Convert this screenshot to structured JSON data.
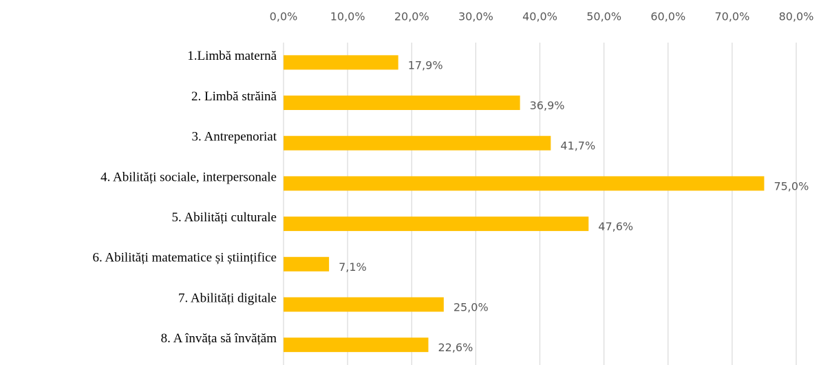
{
  "chart_data": {
    "type": "bar",
    "orientation": "horizontal",
    "categories": [
      "1.Limbă maternă",
      "2. Limbă străină",
      "3. Antrepenoriat",
      "4. Abilități sociale, interpersonale",
      "5. Abilități culturale",
      "6. Abilități matematice și științifice",
      "7. Abilități digitale",
      "8. A învăța să învățăm"
    ],
    "values": [
      17.9,
      36.9,
      41.7,
      75.0,
      47.6,
      7.1,
      25.0,
      22.6
    ],
    "value_labels": [
      "17,9%",
      "36,9%",
      "41,7%",
      "75,0%",
      "47,6%",
      "7,1%",
      "25,0%",
      "22,6%"
    ],
    "color": "#ffc000",
    "xlim": [
      0,
      80
    ],
    "xticks": [
      {
        "value": 0,
        "label": "0,0%"
      },
      {
        "value": 10,
        "label": "10,0%"
      },
      {
        "value": 20,
        "label": "20,0%"
      },
      {
        "value": 30,
        "label": "30,0%"
      },
      {
        "value": 40,
        "label": "40,0%"
      },
      {
        "value": 50,
        "label": "50,0%"
      },
      {
        "value": 60,
        "label": "60,0%"
      },
      {
        "value": 70,
        "label": "70,0%"
      },
      {
        "value": 80,
        "label": "80,0%"
      }
    ],
    "grid": true
  }
}
